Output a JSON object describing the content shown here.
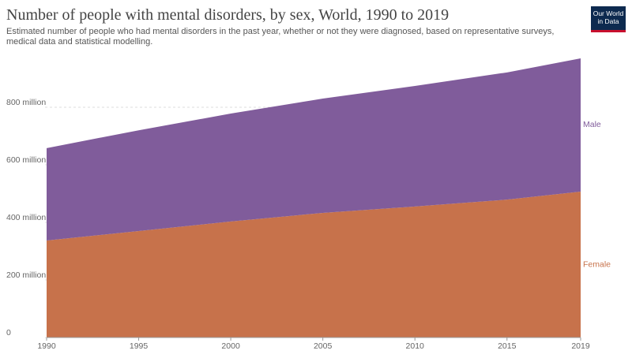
{
  "chart_data": {
    "type": "stacked-area",
    "title": "Number of people with mental disorders, by sex, World, 1990 to 2019",
    "subtitle": "Estimated number of people who had mental disorders in the past year, whether or not they were diagnosed, based on representative surveys, medical data and statistical modelling.",
    "logo": "Our World in Data",
    "x": [
      1990,
      1995,
      2000,
      2005,
      2010,
      2015,
      2019
    ],
    "series": [
      {
        "name": "Female",
        "color": "#c7724b",
        "values": [
          337,
          370,
          403,
          433,
          455,
          479,
          507
        ]
      },
      {
        "name": "Male",
        "color": "#805c9b",
        "values": [
          321,
          350,
          375,
          397,
          419,
          442,
          463
        ]
      }
    ],
    "xlim": [
      1990,
      2019
    ],
    "xticks": [
      1990,
      1995,
      2000,
      2005,
      2010,
      2015,
      2019
    ],
    "ylim": [
      0,
      1000
    ],
    "yticks": [
      0,
      {
        "value": 200,
        "label": "200 million"
      },
      {
        "value": 400,
        "label": "400 million"
      },
      {
        "value": 600,
        "label": "600 million"
      },
      {
        "value": 800,
        "label": "800 million"
      }
    ],
    "grid": true
  }
}
